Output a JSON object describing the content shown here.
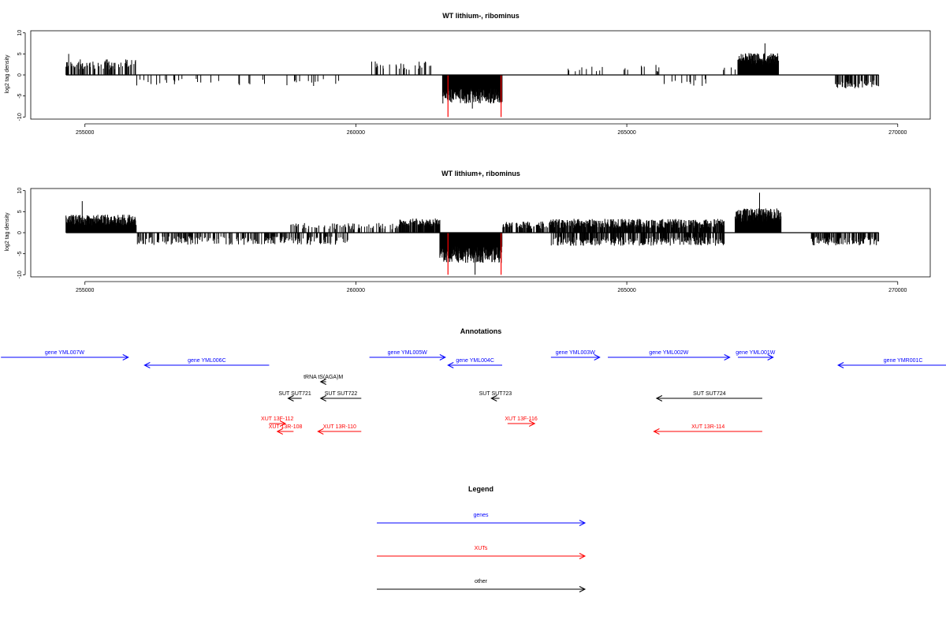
{
  "chart_data": [
    {
      "type": "bar",
      "title": "WT lithium-, ribominus",
      "xlabel": "",
      "ylabel": "log2 tag density",
      "xlim": [
        254000,
        270600
      ],
      "ylim": [
        -10.5,
        10.5
      ],
      "xticks": [
        255000,
        260000,
        265000,
        270000
      ],
      "yticks": [
        10,
        5,
        0,
        -5,
        -10
      ],
      "grid": false,
      "baseline": 0,
      "seed": 11,
      "segments": [
        {
          "from": 254650,
          "to": 255950,
          "sign": 1,
          "mean": 2.5,
          "spread": 1.2,
          "density": 0.35
        },
        {
          "from": 255950,
          "to": 259800,
          "sign": -1,
          "mean": 1.8,
          "spread": 0.9,
          "density": 0.07
        },
        {
          "from": 260250,
          "to": 261400,
          "sign": 1,
          "mean": 2.2,
          "spread": 1.0,
          "density": 0.12
        },
        {
          "from": 261600,
          "to": 262700,
          "sign": -1,
          "mean": 5.0,
          "spread": 1.8,
          "density": 1.0
        },
        {
          "from": 263900,
          "to": 265600,
          "sign": 1,
          "mean": 1.6,
          "spread": 0.8,
          "density": 0.06
        },
        {
          "from": 265600,
          "to": 266700,
          "sign": -1,
          "mean": 1.8,
          "spread": 0.9,
          "density": 0.05
        },
        {
          "from": 266700,
          "to": 267000,
          "sign": 1,
          "mean": 1.5,
          "spread": 0.6,
          "density": 0.06
        },
        {
          "from": 267050,
          "to": 267800,
          "sign": 1,
          "mean": 3.8,
          "spread": 1.4,
          "density": 1.0
        },
        {
          "from": 268850,
          "to": 269650,
          "sign": -1,
          "mean": 2.2,
          "spread": 1.0,
          "density": 0.5
        }
      ],
      "peaks": [
        {
          "x": 254700,
          "y": 5.0
        },
        {
          "x": 262150,
          "y": -8.0
        },
        {
          "x": 267550,
          "y": 7.5
        }
      ],
      "markers": [
        261700,
        262680
      ],
      "marker_color": "#ff0000"
    },
    {
      "type": "bar",
      "title": "WT lithium+, ribominus",
      "xlabel": "",
      "ylabel": "log2 tag density",
      "xlim": [
        254000,
        270600
      ],
      "ylim": [
        -10.5,
        10.5
      ],
      "xticks": [
        255000,
        260000,
        265000,
        270000
      ],
      "yticks": [
        10,
        5,
        0,
        -5,
        -10
      ],
      "grid": false,
      "baseline": 0,
      "seed": 29,
      "segments": [
        {
          "from": 254650,
          "to": 255950,
          "sign": 1,
          "mean": 3.0,
          "spread": 1.3,
          "density": 1.0
        },
        {
          "from": 255950,
          "to": 259900,
          "sign": -1,
          "mean": 1.9,
          "spread": 1.0,
          "density": 0.3
        },
        {
          "from": 258800,
          "to": 260800,
          "sign": 1,
          "mean": 1.5,
          "spread": 0.8,
          "density": 0.25
        },
        {
          "from": 260800,
          "to": 261550,
          "sign": 1,
          "mean": 2.4,
          "spread": 1.0,
          "density": 0.8
        },
        {
          "from": 261550,
          "to": 262700,
          "sign": -1,
          "mean": 5.2,
          "spread": 2.0,
          "density": 1.0
        },
        {
          "from": 262700,
          "to": 263600,
          "sign": 1,
          "mean": 1.8,
          "spread": 0.9,
          "density": 0.5
        },
        {
          "from": 263600,
          "to": 266800,
          "sign": 1,
          "mean": 2.2,
          "spread": 1.1,
          "density": 0.75
        },
        {
          "from": 263600,
          "to": 266800,
          "sign": -1,
          "mean": 2.0,
          "spread": 1.1,
          "density": 0.5
        },
        {
          "from": 267000,
          "to": 267850,
          "sign": 1,
          "mean": 4.2,
          "spread": 1.6,
          "density": 1.0
        },
        {
          "from": 268400,
          "to": 269650,
          "sign": -1,
          "mean": 2.0,
          "spread": 1.0,
          "density": 0.55
        }
      ],
      "peaks": [
        {
          "x": 254950,
          "y": 7.5
        },
        {
          "x": 262200,
          "y": -10.0
        },
        {
          "x": 267450,
          "y": 9.5
        }
      ],
      "markers": [
        261700,
        262680
      ],
      "marker_color": "#ff0000"
    }
  ],
  "annotations": {
    "title": "Annotations",
    "xlim": [
      254000,
      270600
    ],
    "items": [
      {
        "label": "gene YML007W",
        "from": 253450,
        "to": 255800,
        "dir": "right",
        "row": 0,
        "color": "#0000ff"
      },
      {
        "label": "gene YML006C",
        "from": 256100,
        "to": 258400,
        "dir": "left",
        "row": 1,
        "color": "#0000ff"
      },
      {
        "label": "gene YML005W",
        "from": 260250,
        "to": 261650,
        "dir": "right",
        "row": 0,
        "color": "#0000ff"
      },
      {
        "label": "gene YML004C",
        "from": 261700,
        "to": 262700,
        "dir": "left",
        "row": 1,
        "color": "#0000ff"
      },
      {
        "label": "gene YML003W",
        "from": 263600,
        "to": 264500,
        "dir": "right",
        "row": 0,
        "color": "#0000ff"
      },
      {
        "label": "gene YML002W",
        "from": 264650,
        "to": 266900,
        "dir": "right",
        "row": 0,
        "color": "#0000ff"
      },
      {
        "label": "gene YML001W",
        "from": 267050,
        "to": 267700,
        "dir": "right",
        "row": 0,
        "color": "#0000ff"
      },
      {
        "label": "gene YMR001C",
        "from": 268900,
        "to": 271300,
        "dir": "left",
        "row": 1,
        "color": "#0000ff"
      },
      {
        "label": "tRNA tS(AGA)M",
        "from": 259350,
        "to": 259450,
        "dir": "left",
        "row": 2,
        "color": "#000000"
      },
      {
        "label": "SUT SUT721",
        "from": 258750,
        "to": 259000,
        "dir": "left",
        "row": 3,
        "color": "#000000"
      },
      {
        "label": "SUT SUT722",
        "from": 259350,
        "to": 260100,
        "dir": "left",
        "row": 3,
        "color": "#000000"
      },
      {
        "label": "SUT SUT723",
        "from": 262500,
        "to": 262650,
        "dir": "left",
        "row": 3,
        "color": "#000000"
      },
      {
        "label": "SUT SUT724",
        "from": 265550,
        "to": 267500,
        "dir": "left",
        "row": 3,
        "color": "#000000"
      },
      {
        "label": "XUT 13F-112",
        "from": 258400,
        "to": 258700,
        "dir": "right",
        "row": 4,
        "color": "#ff0000"
      },
      {
        "label": "XUT 13R-108",
        "from": 258550,
        "to": 258850,
        "dir": "left",
        "row": 5,
        "color": "#ff0000"
      },
      {
        "label": "XUT 13R-110",
        "from": 259300,
        "to": 260100,
        "dir": "left",
        "row": 5,
        "color": "#ff0000"
      },
      {
        "label": "XUT 13F-116",
        "from": 262800,
        "to": 263300,
        "dir": "right",
        "row": 4,
        "color": "#ff0000"
      },
      {
        "label": "XUT 13R-114",
        "from": 265500,
        "to": 267500,
        "dir": "left",
        "row": 5,
        "color": "#ff0000"
      }
    ]
  },
  "legend": {
    "title": "Legend",
    "entries": [
      {
        "label": "genes",
        "color": "#0000ff"
      },
      {
        "label": "XUTs",
        "color": "#ff0000"
      },
      {
        "label": "other",
        "color": "#000000"
      }
    ]
  }
}
